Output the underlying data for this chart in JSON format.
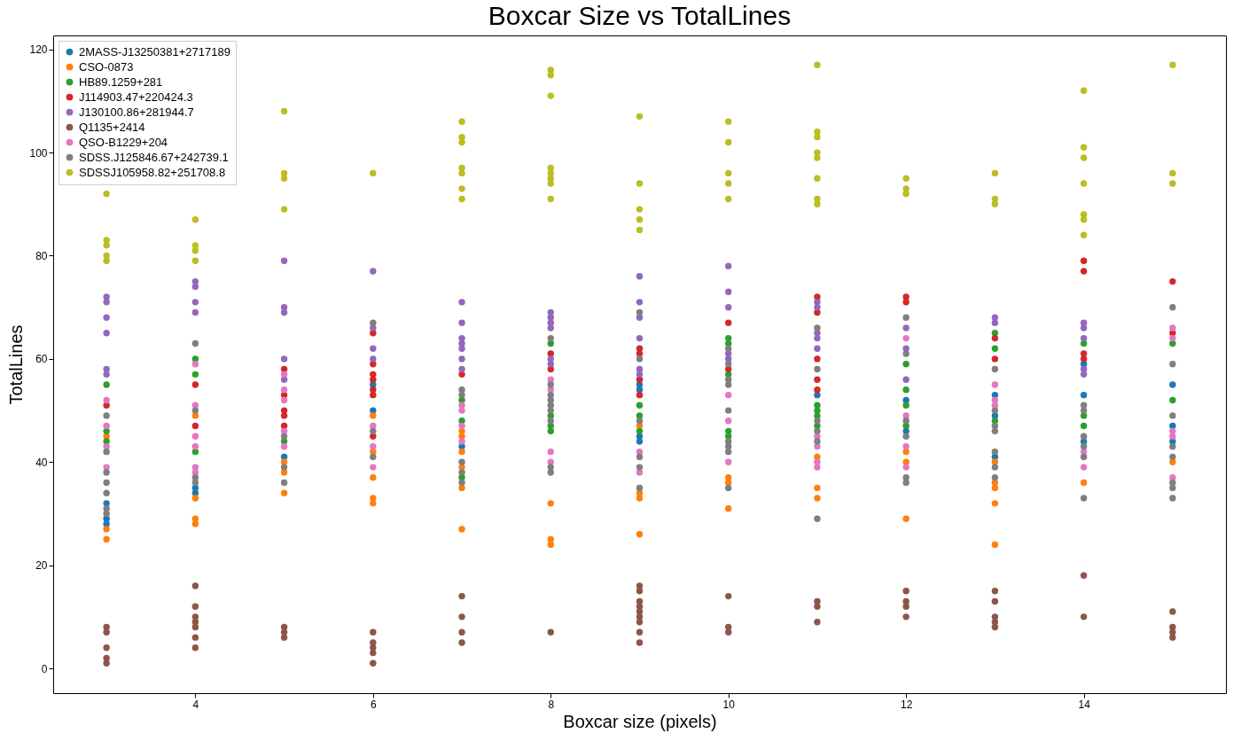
{
  "chart_data": {
    "type": "scatter",
    "title": "Boxcar Size vs TotalLines",
    "xlabel": "Boxcar size (pixels)",
    "ylabel": "TotalLines",
    "xlim": [
      2.4,
      15.6
    ],
    "xticks": [
      4,
      6,
      8,
      10,
      12,
      14
    ],
    "ylim": [
      -4.8,
      122.7
    ],
    "yticks": [
      0,
      20,
      40,
      60,
      80,
      100,
      120
    ],
    "grid": false,
    "legend": "top left",
    "marker": "circle",
    "series": [
      {
        "name": "2MASS-J13250381+2717189",
        "color": "#1f77b4",
        "x": [
          3,
          3,
          3,
          4,
          4,
          5,
          6,
          6,
          7,
          9,
          9,
          9,
          9,
          11,
          12,
          12,
          13,
          13,
          13,
          14,
          14,
          14,
          15,
          15,
          15
        ],
        "values": [
          32,
          29,
          28,
          35,
          34,
          41,
          55,
          50,
          43,
          55,
          54,
          45,
          44,
          53,
          52,
          46,
          53,
          49,
          41,
          59,
          53,
          44,
          55,
          47,
          44
        ]
      },
      {
        "name": "CSO-0873",
        "color": "#ff7f0e",
        "x": [
          3,
          3,
          3,
          4,
          4,
          4,
          4,
          5,
          5,
          5,
          6,
          6,
          6,
          6,
          6,
          7,
          7,
          7,
          7,
          7,
          7,
          8,
          8,
          8,
          9,
          9,
          9,
          9,
          10,
          10,
          10,
          11,
          11,
          11,
          12,
          12,
          12,
          13,
          13,
          13,
          13,
          13,
          14,
          15
        ],
        "values": [
          45,
          27,
          25,
          49,
          33,
          29,
          28,
          40,
          38,
          34,
          49,
          42,
          37,
          33,
          32,
          46,
          45,
          42,
          39,
          35,
          27,
          32,
          25,
          24,
          47,
          34,
          33,
          26,
          37,
          36,
          31,
          41,
          35,
          33,
          42,
          40,
          29,
          40,
          36,
          35,
          32,
          24,
          36,
          40
        ]
      },
      {
        "name": "HB89.1259+281",
        "color": "#2ca02c",
        "x": [
          3,
          3,
          3,
          4,
          4,
          4,
          5,
          7,
          7,
          7,
          8,
          8,
          8,
          8,
          9,
          9,
          9,
          10,
          10,
          10,
          10,
          10,
          11,
          11,
          11,
          11,
          12,
          12,
          12,
          12,
          13,
          13,
          13,
          14,
          14,
          14,
          15,
          15
        ],
        "values": [
          55,
          46,
          44,
          60,
          57,
          42,
          44,
          52,
          48,
          37,
          63,
          49,
          47,
          46,
          51,
          49,
          46,
          64,
          63,
          57,
          46,
          45,
          51,
          50,
          49,
          47,
          59,
          54,
          51,
          47,
          65,
          62,
          48,
          63,
          49,
          47,
          63,
          52
        ]
      },
      {
        "name": "J114903.47+220424.3",
        "color": "#d62728",
        "x": [
          3,
          4,
          4,
          5,
          5,
          5,
          5,
          5,
          6,
          6,
          6,
          6,
          6,
          6,
          6,
          7,
          8,
          8,
          9,
          9,
          9,
          9,
          10,
          10,
          11,
          11,
          11,
          11,
          11,
          12,
          12,
          13,
          13,
          14,
          14,
          14,
          14,
          15,
          15
        ],
        "values": [
          51,
          55,
          47,
          58,
          53,
          50,
          49,
          47,
          65,
          59,
          57,
          56,
          54,
          53,
          45,
          57,
          61,
          58,
          62,
          61,
          56,
          53,
          67,
          58,
          72,
          69,
          60,
          56,
          54,
          72,
          71,
          64,
          60,
          79,
          77,
          61,
          60,
          75,
          65
        ]
      },
      {
        "name": "J130100.86+281944.7",
        "color": "#9467bd",
        "x": [
          3,
          3,
          3,
          3,
          3,
          3,
          4,
          4,
          4,
          4,
          5,
          5,
          5,
          5,
          5,
          6,
          6,
          6,
          6,
          7,
          7,
          7,
          7,
          7,
          7,
          7,
          8,
          8,
          8,
          8,
          8,
          8,
          9,
          9,
          9,
          9,
          9,
          9,
          10,
          10,
          10,
          10,
          10,
          11,
          11,
          11,
          11,
          11,
          12,
          12,
          12,
          13,
          13,
          14,
          14,
          14,
          14,
          14
        ],
        "values": [
          72,
          71,
          68,
          65,
          58,
          57,
          75,
          74,
          71,
          69,
          79,
          70,
          69,
          60,
          56,
          77,
          66,
          62,
          60,
          71,
          67,
          64,
          63,
          62,
          60,
          58,
          69,
          68,
          67,
          66,
          60,
          59,
          76,
          71,
          68,
          64,
          58,
          57,
          78,
          73,
          70,
          61,
          60,
          71,
          70,
          65,
          64,
          62,
          66,
          62,
          56,
          68,
          67,
          67,
          66,
          64,
          58,
          57
        ]
      },
      {
        "name": "Q1135+2414",
        "color": "#8c564b",
        "x": [
          3,
          3,
          3,
          3,
          3,
          4,
          4,
          4,
          4,
          4,
          4,
          4,
          5,
          5,
          5,
          6,
          6,
          6,
          6,
          6,
          7,
          7,
          7,
          7,
          8,
          9,
          9,
          9,
          9,
          9,
          9,
          9,
          9,
          9,
          10,
          10,
          10,
          11,
          11,
          11,
          12,
          12,
          12,
          12,
          13,
          13,
          13,
          13,
          13,
          14,
          14,
          15,
          15,
          15,
          15
        ],
        "values": [
          8,
          7,
          4,
          2,
          1,
          16,
          12,
          10,
          9,
          8,
          6,
          4,
          8,
          7,
          6,
          7,
          5,
          4,
          3,
          1,
          14,
          10,
          7,
          5,
          7,
          16,
          15,
          13,
          12,
          11,
          10,
          9,
          7,
          5,
          14,
          8,
          7,
          13,
          12,
          9,
          15,
          13,
          12,
          10,
          15,
          13,
          10,
          9,
          8,
          18,
          10,
          11,
          8,
          7,
          6
        ]
      },
      {
        "name": "QSO-B1229+204",
        "color": "#e377c2",
        "x": [
          3,
          3,
          3,
          3,
          4,
          4,
          4,
          4,
          4,
          4,
          5,
          5,
          5,
          5,
          5,
          6,
          6,
          6,
          7,
          7,
          7,
          7,
          8,
          8,
          8,
          8,
          9,
          9,
          10,
          10,
          10,
          11,
          11,
          11,
          11,
          12,
          12,
          12,
          12,
          13,
          13,
          13,
          14,
          14,
          15,
          15,
          15,
          15,
          15
        ],
        "values": [
          52,
          47,
          43,
          39,
          59,
          51,
          45,
          43,
          39,
          38,
          57,
          54,
          52,
          46,
          43,
          47,
          43,
          39,
          51,
          50,
          47,
          44,
          56,
          54,
          42,
          40,
          42,
          38,
          53,
          48,
          40,
          45,
          43,
          40,
          39,
          64,
          49,
          43,
          39,
          55,
          52,
          51,
          42,
          39,
          66,
          64,
          46,
          45,
          37
        ]
      },
      {
        "name": "SDSS.J125846.67+242739.1",
        "color": "#7f7f7f",
        "x": [
          3,
          3,
          3,
          3,
          3,
          3,
          3,
          4,
          4,
          4,
          4,
          5,
          5,
          5,
          6,
          6,
          6,
          7,
          7,
          7,
          7,
          7,
          8,
          8,
          8,
          8,
          8,
          8,
          8,
          8,
          8,
          9,
          9,
          9,
          9,
          9,
          9,
          10,
          10,
          10,
          10,
          10,
          10,
          10,
          10,
          10,
          11,
          11,
          11,
          11,
          11,
          11,
          12,
          12,
          12,
          12,
          12,
          12,
          13,
          13,
          13,
          13,
          13,
          13,
          13,
          14,
          14,
          14,
          14,
          14,
          14,
          15,
          15,
          15,
          15,
          15,
          15,
          15,
          15
        ],
        "values": [
          49,
          42,
          38,
          36,
          34,
          31,
          30,
          63,
          50,
          37,
          36,
          45,
          39,
          36,
          67,
          46,
          41,
          54,
          53,
          40,
          38,
          36,
          64,
          55,
          53,
          52,
          51,
          50,
          48,
          39,
          38,
          69,
          60,
          48,
          41,
          39,
          35,
          62,
          59,
          56,
          55,
          50,
          44,
          43,
          42,
          35,
          66,
          58,
          48,
          46,
          44,
          29,
          68,
          61,
          48,
          45,
          37,
          36,
          58,
          50,
          47,
          46,
          42,
          39,
          37,
          51,
          50,
          45,
          43,
          41,
          33,
          70,
          59,
          49,
          43,
          41,
          36,
          35,
          33
        ]
      },
      {
        "name": "SDSSJ105958.82+251708.8",
        "color": "#bcbd22",
        "x": [
          3,
          3,
          3,
          3,
          3,
          4,
          4,
          4,
          4,
          5,
          5,
          5,
          5,
          6,
          7,
          7,
          7,
          7,
          7,
          7,
          7,
          8,
          8,
          8,
          8,
          8,
          8,
          8,
          8,
          9,
          9,
          9,
          9,
          9,
          10,
          10,
          10,
          10,
          10,
          11,
          11,
          11,
          11,
          11,
          11,
          11,
          11,
          12,
          12,
          12,
          13,
          13,
          13,
          14,
          14,
          14,
          14,
          14,
          14,
          14,
          15,
          15,
          15
        ],
        "values": [
          92,
          83,
          82,
          80,
          79,
          87,
          82,
          81,
          79,
          108,
          96,
          95,
          89,
          96,
          106,
          103,
          102,
          97,
          96,
          93,
          91,
          116,
          115,
          111,
          97,
          96,
          95,
          94,
          91,
          107,
          94,
          89,
          87,
          85,
          106,
          102,
          96,
          94,
          91,
          117,
          104,
          103,
          100,
          99,
          95,
          91,
          90,
          95,
          93,
          92,
          96,
          91,
          90,
          112,
          101,
          99,
          94,
          88,
          87,
          84,
          117,
          96,
          94
        ]
      }
    ]
  }
}
